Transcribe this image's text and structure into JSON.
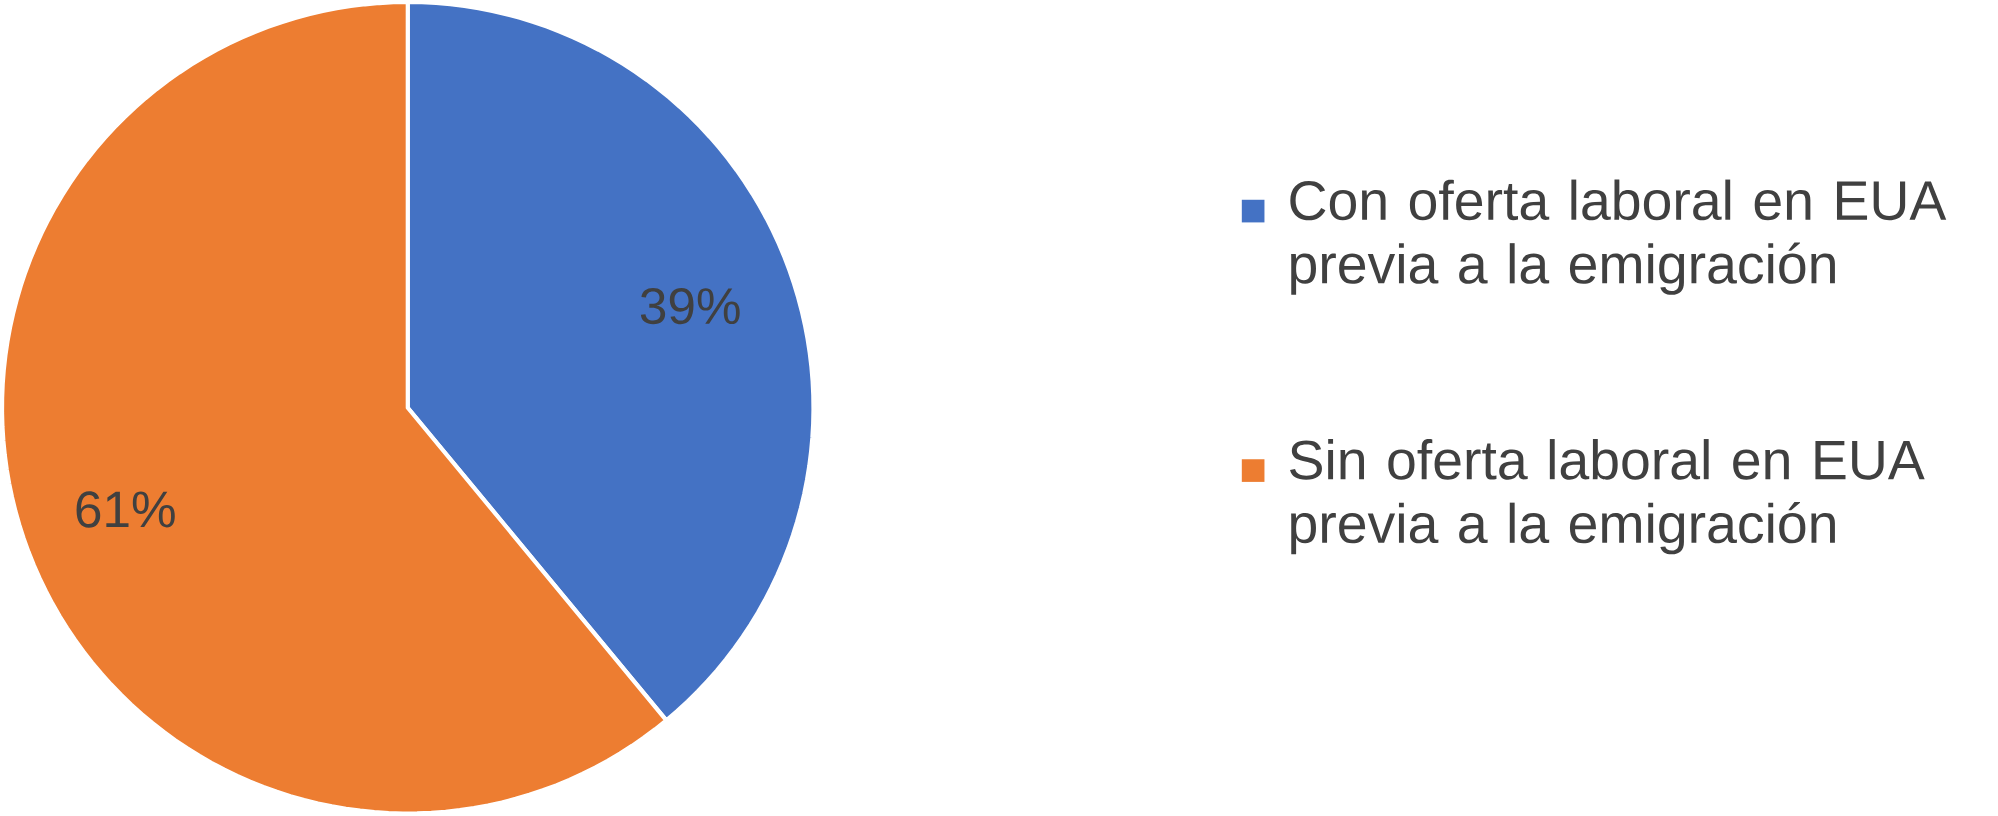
{
  "chart_data": {
    "type": "pie",
    "categories": [
      "Con oferta laboral en EUA previa a la emigración",
      "Sin oferta laboral en EUA previa a la emigración"
    ],
    "values": [
      39,
      61
    ],
    "colors": [
      "#4472c4",
      "#ed7d31"
    ],
    "value_labels": [
      "39%",
      "61%"
    ],
    "legend": "right"
  }
}
